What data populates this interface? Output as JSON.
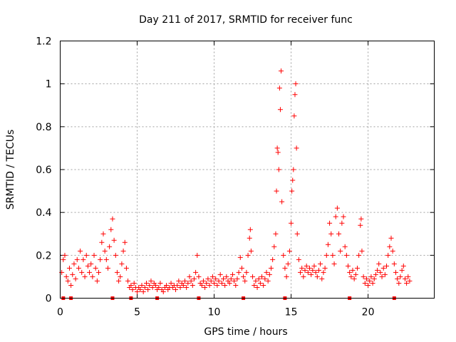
{
  "chart_data": {
    "type": "scatter",
    "title": "Day 211 of 2017, SRMTID for receiver func",
    "xlabel": "GPS time / hours",
    "ylabel": "SRMTID / TECUs",
    "xlim": [
      0,
      24.3
    ],
    "ylim": [
      0,
      1.2
    ],
    "xticks": [
      0,
      5,
      10,
      15,
      20
    ],
    "xtick_labels": [
      "0",
      "5",
      "10",
      "15",
      "20"
    ],
    "yticks": [
      0,
      0.2,
      0.4,
      0.6,
      0.8,
      1.0,
      1.2
    ],
    "ytick_labels": [
      "0",
      "0.2",
      "0.4",
      "0.6",
      "0.8",
      "1",
      "1.2"
    ],
    "grid": true,
    "marker": "+",
    "color": "#ff0000",
    "series": [
      {
        "name": "SRMTID",
        "points": [
          [
            0.1,
            0.12
          ],
          [
            0.2,
            0.18
          ],
          [
            0.3,
            0.2
          ],
          [
            0.4,
            0.1
          ],
          [
            0.5,
            0.08
          ],
          [
            0.6,
            0.14
          ],
          [
            0.7,
            0.06
          ],
          [
            0.8,
            0.11
          ],
          [
            0.9,
            0.16
          ],
          [
            1.0,
            0.09
          ],
          [
            1.1,
            0.18
          ],
          [
            1.2,
            0.14
          ],
          [
            1.3,
            0.22
          ],
          [
            1.4,
            0.12
          ],
          [
            1.5,
            0.18
          ],
          [
            1.6,
            0.1
          ],
          [
            1.7,
            0.2
          ],
          [
            1.8,
            0.15
          ],
          [
            1.9,
            0.12
          ],
          [
            2.0,
            0.16
          ],
          [
            2.1,
            0.1
          ],
          [
            2.2,
            0.2
          ],
          [
            2.3,
            0.14
          ],
          [
            2.4,
            0.08
          ],
          [
            2.5,
            0.12
          ],
          [
            2.6,
            0.18
          ],
          [
            2.7,
            0.26
          ],
          [
            2.8,
            0.3
          ],
          [
            2.9,
            0.22
          ],
          [
            3.0,
            0.18
          ],
          [
            3.1,
            0.14
          ],
          [
            3.2,
            0.24
          ],
          [
            3.3,
            0.32
          ],
          [
            3.4,
            0.37
          ],
          [
            3.5,
            0.27
          ],
          [
            3.6,
            0.2
          ],
          [
            3.7,
            0.12
          ],
          [
            3.8,
            0.08
          ],
          [
            3.9,
            0.1
          ],
          [
            4.0,
            0.16
          ],
          [
            4.1,
            0.22
          ],
          [
            4.2,
            0.26
          ],
          [
            4.3,
            0.14
          ],
          [
            4.4,
            0.08
          ],
          [
            4.5,
            0.05
          ],
          [
            4.6,
            0.06
          ],
          [
            4.7,
            0.04
          ],
          [
            4.8,
            0.07
          ],
          [
            4.9,
            0.05
          ],
          [
            5.0,
            0.03
          ],
          [
            5.1,
            0.05
          ],
          [
            5.2,
            0.04
          ],
          [
            5.3,
            0.06
          ],
          [
            5.4,
            0.03
          ],
          [
            5.5,
            0.05
          ],
          [
            5.6,
            0.07
          ],
          [
            5.7,
            0.04
          ],
          [
            5.8,
            0.06
          ],
          [
            5.9,
            0.08
          ],
          [
            6.0,
            0.05
          ],
          [
            6.1,
            0.07
          ],
          [
            6.2,
            0.06
          ],
          [
            6.3,
            0.04
          ],
          [
            6.4,
            0.05
          ],
          [
            6.5,
            0.07
          ],
          [
            6.6,
            0.04
          ],
          [
            6.7,
            0.03
          ],
          [
            6.8,
            0.05
          ],
          [
            6.9,
            0.06
          ],
          [
            7.0,
            0.04
          ],
          [
            7.1,
            0.05
          ],
          [
            7.2,
            0.07
          ],
          [
            7.3,
            0.05
          ],
          [
            7.4,
            0.06
          ],
          [
            7.5,
            0.04
          ],
          [
            7.6,
            0.06
          ],
          [
            7.7,
            0.08
          ],
          [
            7.8,
            0.05
          ],
          [
            7.9,
            0.07
          ],
          [
            8.0,
            0.06
          ],
          [
            8.1,
            0.08
          ],
          [
            8.2,
            0.05
          ],
          [
            8.3,
            0.07
          ],
          [
            8.4,
            0.1
          ],
          [
            8.5,
            0.08
          ],
          [
            8.6,
            0.06
          ],
          [
            8.7,
            0.09
          ],
          [
            8.8,
            0.12
          ],
          [
            8.9,
            0.2
          ],
          [
            9.0,
            0.1
          ],
          [
            9.1,
            0.07
          ],
          [
            9.2,
            0.06
          ],
          [
            9.3,
            0.08
          ],
          [
            9.4,
            0.05
          ],
          [
            9.5,
            0.07
          ],
          [
            9.6,
            0.09
          ],
          [
            9.7,
            0.06
          ],
          [
            9.8,
            0.08
          ],
          [
            9.9,
            0.1
          ],
          [
            10.0,
            0.07
          ],
          [
            10.1,
            0.09
          ],
          [
            10.2,
            0.06
          ],
          [
            10.3,
            0.08
          ],
          [
            10.4,
            0.11
          ],
          [
            10.5,
            0.07
          ],
          [
            10.6,
            0.09
          ],
          [
            10.7,
            0.06
          ],
          [
            10.8,
            0.1
          ],
          [
            10.9,
            0.08
          ],
          [
            11.0,
            0.07
          ],
          [
            11.1,
            0.09
          ],
          [
            11.2,
            0.11
          ],
          [
            11.3,
            0.08
          ],
          [
            11.4,
            0.06
          ],
          [
            11.5,
            0.09
          ],
          [
            11.6,
            0.12
          ],
          [
            11.7,
            0.19
          ],
          [
            11.8,
            0.14
          ],
          [
            11.9,
            0.1
          ],
          [
            12.0,
            0.08
          ],
          [
            12.1,
            0.12
          ],
          [
            12.2,
            0.2
          ],
          [
            12.3,
            0.28
          ],
          [
            12.35,
            0.32
          ],
          [
            12.4,
            0.22
          ],
          [
            12.5,
            0.1
          ],
          [
            12.6,
            0.06
          ],
          [
            12.7,
            0.08
          ],
          [
            12.8,
            0.05
          ],
          [
            12.9,
            0.09
          ],
          [
            13.0,
            0.07
          ],
          [
            13.1,
            0.1
          ],
          [
            13.2,
            0.06
          ],
          [
            13.3,
            0.09
          ],
          [
            13.4,
            0.12
          ],
          [
            13.5,
            0.08
          ],
          [
            13.6,
            0.11
          ],
          [
            13.7,
            0.14
          ],
          [
            13.8,
            0.18
          ],
          [
            13.9,
            0.24
          ],
          [
            14.0,
            0.3
          ],
          [
            14.05,
            0.5
          ],
          [
            14.1,
            0.7
          ],
          [
            14.15,
            0.68
          ],
          [
            14.2,
            0.6
          ],
          [
            14.25,
            0.98
          ],
          [
            14.3,
            0.88
          ],
          [
            14.35,
            1.06
          ],
          [
            14.4,
            0.45
          ],
          [
            14.5,
            0.2
          ],
          [
            14.6,
            0.14
          ],
          [
            14.7,
            0.1
          ],
          [
            14.8,
            0.16
          ],
          [
            14.9,
            0.22
          ],
          [
            15.0,
            0.35
          ],
          [
            15.05,
            0.5
          ],
          [
            15.1,
            0.55
          ],
          [
            15.15,
            0.6
          ],
          [
            15.2,
            0.85
          ],
          [
            15.25,
            0.95
          ],
          [
            15.3,
            1.0
          ],
          [
            15.35,
            0.7
          ],
          [
            15.4,
            0.3
          ],
          [
            15.5,
            0.18
          ],
          [
            15.6,
            0.12
          ],
          [
            15.7,
            0.14
          ],
          [
            15.8,
            0.1
          ],
          [
            15.9,
            0.13
          ],
          [
            16.0,
            0.15
          ],
          [
            16.1,
            0.12
          ],
          [
            16.2,
            0.14
          ],
          [
            16.3,
            0.11
          ],
          [
            16.4,
            0.13
          ],
          [
            16.5,
            0.15
          ],
          [
            16.6,
            0.12
          ],
          [
            16.7,
            0.1
          ],
          [
            16.8,
            0.13
          ],
          [
            16.9,
            0.16
          ],
          [
            17.0,
            0.09
          ],
          [
            17.1,
            0.12
          ],
          [
            17.2,
            0.14
          ],
          [
            17.3,
            0.2
          ],
          [
            17.4,
            0.25
          ],
          [
            17.5,
            0.35
          ],
          [
            17.6,
            0.3
          ],
          [
            17.7,
            0.2
          ],
          [
            17.8,
            0.16
          ],
          [
            17.9,
            0.38
          ],
          [
            18.0,
            0.42
          ],
          [
            18.1,
            0.3
          ],
          [
            18.2,
            0.22
          ],
          [
            18.3,
            0.35
          ],
          [
            18.4,
            0.38
          ],
          [
            18.5,
            0.24
          ],
          [
            18.6,
            0.2
          ],
          [
            18.7,
            0.15
          ],
          [
            18.8,
            0.12
          ],
          [
            18.9,
            0.1
          ],
          [
            19.0,
            0.13
          ],
          [
            19.1,
            0.09
          ],
          [
            19.2,
            0.11
          ],
          [
            19.3,
            0.14
          ],
          [
            19.4,
            0.2
          ],
          [
            19.5,
            0.34
          ],
          [
            19.55,
            0.37
          ],
          [
            19.6,
            0.22
          ],
          [
            19.7,
            0.1
          ],
          [
            19.8,
            0.07
          ],
          [
            19.9,
            0.09
          ],
          [
            20.0,
            0.06
          ],
          [
            20.1,
            0.08
          ],
          [
            20.2,
            0.1
          ],
          [
            20.3,
            0.07
          ],
          [
            20.4,
            0.09
          ],
          [
            20.5,
            0.11
          ],
          [
            20.6,
            0.13
          ],
          [
            20.7,
            0.16
          ],
          [
            20.8,
            0.12
          ],
          [
            20.9,
            0.1
          ],
          [
            21.0,
            0.14
          ],
          [
            21.1,
            0.11
          ],
          [
            21.2,
            0.15
          ],
          [
            21.3,
            0.2
          ],
          [
            21.4,
            0.24
          ],
          [
            21.5,
            0.28
          ],
          [
            21.6,
            0.22
          ],
          [
            21.7,
            0.16
          ],
          [
            21.8,
            0.12
          ],
          [
            21.9,
            0.09
          ],
          [
            22.0,
            0.07
          ],
          [
            22.1,
            0.1
          ],
          [
            22.2,
            0.13
          ],
          [
            22.3,
            0.15
          ],
          [
            22.4,
            0.09
          ],
          [
            22.5,
            0.07
          ],
          [
            22.6,
            0.1
          ],
          [
            22.7,
            0.08
          ]
        ]
      }
    ],
    "axis_markers": [
      0.2,
      0.7,
      3.4,
      4.6,
      6.3,
      9.0,
      11.9,
      14.6,
      18.8,
      21.7
    ]
  }
}
